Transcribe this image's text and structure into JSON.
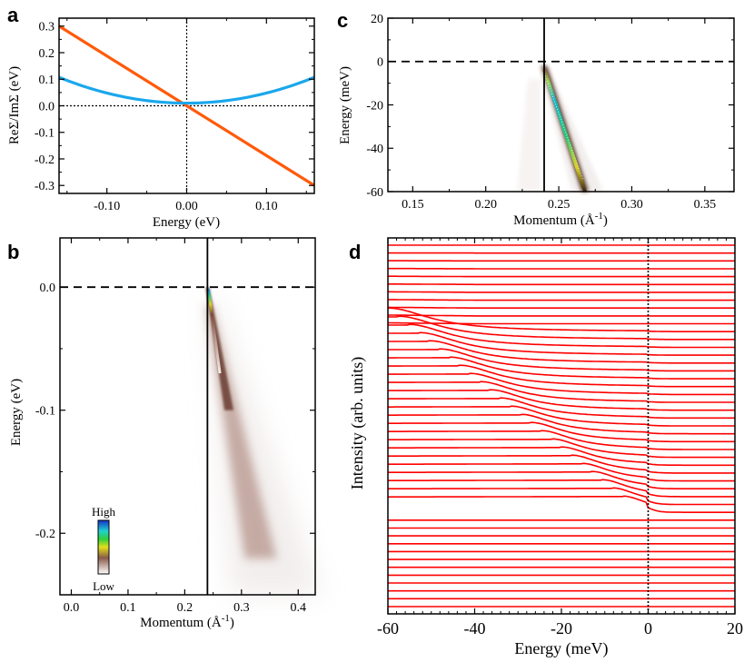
{
  "chart_data": [
    {
      "panel": "a",
      "type": "line",
      "xlabel": "Energy (eV)",
      "ylabel": "ReΣ/ImΣ (eV)",
      "xlim": [
        -0.16,
        0.16
      ],
      "ylim": [
        -0.33,
        0.33
      ],
      "xticks": [
        -0.1,
        0,
        0.1
      ],
      "xtick_labels": [
        "-0.10",
        "0.00",
        "0.10"
      ],
      "yticks": [
        0.3,
        0.2,
        0.1,
        0,
        -0.1,
        -0.2,
        -0.3
      ],
      "ytick_labels": [
        "0.3",
        "0.2",
        "0.1",
        "0.0",
        "-0.1",
        "-0.2",
        "-0.3"
      ],
      "series": [
        {
          "name": "ReΣ",
          "color": "#ff5a0a",
          "x": [
            -0.16,
            -0.08,
            0,
            0.08,
            0.16
          ],
          "values": [
            0.3,
            0.15,
            0,
            -0.15,
            -0.3
          ]
        },
        {
          "name": "ImΣ",
          "color": "#1aa7ec",
          "x": [
            -0.16,
            -0.12,
            -0.08,
            -0.04,
            0,
            0.04,
            0.08,
            0.12,
            0.16
          ],
          "values": [
            0.108,
            0.065,
            0.034,
            0.016,
            0.01,
            0.016,
            0.034,
            0.065,
            0.108
          ]
        }
      ],
      "reference_lines": {
        "x": 0,
        "y": 0
      }
    },
    {
      "panel": "c",
      "type": "heatmap",
      "xlabel": "Momentum (Å⁻¹)",
      "xlabel_main": "Momentum (",
      "xlabel_unit": "Å",
      "xlabel_exp": "-1",
      "xlabel_close": ")",
      "ylabel": "Energy (meV)",
      "xlim": [
        0.133,
        0.37
      ],
      "ylim": [
        -60,
        20
      ],
      "xticks": [
        0.15,
        0.2,
        0.25,
        0.3,
        0.35
      ],
      "xtick_labels": [
        "0.15",
        "0.20",
        "0.25",
        "0.30",
        "0.35"
      ],
      "yticks": [
        20,
        0,
        -20,
        -40,
        -60
      ],
      "ytick_labels": [
        "20",
        "0",
        "-20",
        "-40",
        "-60"
      ],
      "fermi_level": 0,
      "kf": 0.24,
      "dispersion": {
        "k_start": 0.24,
        "e_start": -2,
        "k_end": 0.268,
        "e_end": -60
      }
    },
    {
      "panel": "b",
      "type": "heatmap",
      "xlabel": "Momentum (Å⁻¹)",
      "xlabel_main": "Momentum (",
      "xlabel_unit": "Å",
      "xlabel_exp": "-1",
      "xlabel_close": ")",
      "ylabel": "Energy (eV)",
      "xlim": [
        -0.02,
        0.43
      ],
      "ylim": [
        -0.25,
        0.04
      ],
      "xticks": [
        0,
        0.1,
        0.2,
        0.3,
        0.4
      ],
      "xtick_labels": [
        "0.0",
        "0.1",
        "0.2",
        "0.3",
        "0.4"
      ],
      "yticks": [
        0,
        -0.1,
        -0.2
      ],
      "ytick_labels": [
        "0.0",
        "-0.1",
        "-0.2"
      ],
      "fermi_level": 0,
      "kf": 0.24,
      "dispersion": {
        "k_start": 0.24,
        "e_start": 0,
        "k_end": 0.33,
        "e_end": -0.25
      },
      "colorbar": {
        "high_label": "High",
        "low_label": "Low"
      }
    },
    {
      "panel": "d",
      "type": "line",
      "xlabel": "Energy (meV)",
      "ylabel": "Intensity (arb. units)",
      "xlim": [
        -60,
        20
      ],
      "xticks": [
        -60,
        -40,
        -20,
        0,
        20
      ],
      "xtick_labels": [
        "-60",
        "-40",
        "-20",
        "0",
        "20"
      ],
      "series_count": 47,
      "line_color": "#ff0000",
      "fermi_level": 0
    }
  ],
  "panel_labels": {
    "a": "a",
    "b": "b",
    "c": "c",
    "d": "d"
  }
}
